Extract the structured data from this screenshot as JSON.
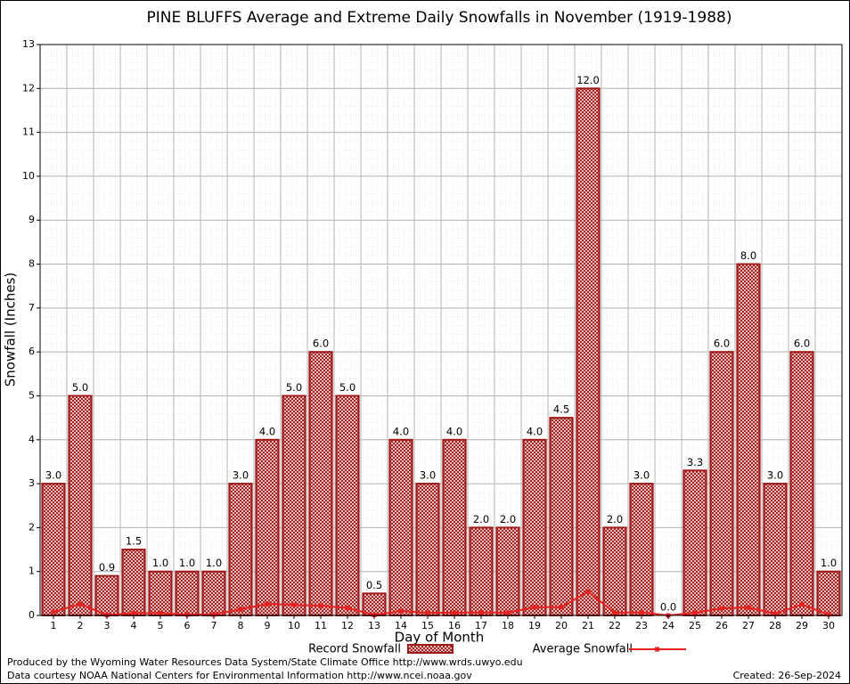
{
  "chart_data": {
    "type": "bar",
    "title": "PINE BLUFFS Average and Extreme Daily Snowfalls in November (1919-1988)",
    "x_label": "Day of Month",
    "y_label": "Snowfall (Inches)",
    "categories": [
      "1",
      "2",
      "3",
      "4",
      "5",
      "6",
      "7",
      "8",
      "9",
      "10",
      "11",
      "12",
      "13",
      "14",
      "15",
      "16",
      "17",
      "18",
      "19",
      "20",
      "21",
      "22",
      "23",
      "24",
      "25",
      "26",
      "27",
      "28",
      "29",
      "30"
    ],
    "series": [
      {
        "name": "Record Snowfall",
        "type": "bar",
        "color": "#a01818",
        "values": [
          3.0,
          5.0,
          0.9,
          1.5,
          1.0,
          1.0,
          1.0,
          3.0,
          4.0,
          5.0,
          6.0,
          5.0,
          0.5,
          4.0,
          3.0,
          4.0,
          2.0,
          2.0,
          4.0,
          4.5,
          12.0,
          2.0,
          3.0,
          0.0,
          3.3,
          6.0,
          8.0,
          3.0,
          6.0,
          1.0
        ],
        "value_labels": [
          "3.0",
          "5.0",
          "0.9",
          "1.5",
          "1.0",
          "1.0",
          "1.0",
          "3.0",
          "4.0",
          "5.0",
          "6.0",
          "5.0",
          "0.5",
          "4.0",
          "3.0",
          "4.0",
          "2.0",
          "2.0",
          "4.0",
          "4.5",
          "12.0",
          "2.0",
          "3.0",
          "0.0",
          "3.3",
          "6.0",
          "8.0",
          "3.0",
          "6.0",
          "1.0"
        ]
      },
      {
        "name": "Average Snowfall",
        "type": "line",
        "color": "#e82020",
        "values": [
          0.08,
          0.26,
          0.01,
          0.05,
          0.05,
          0.02,
          0.02,
          0.14,
          0.26,
          0.24,
          0.22,
          0.17,
          0.01,
          0.1,
          0.06,
          0.06,
          0.07,
          0.06,
          0.19,
          0.19,
          0.54,
          0.06,
          0.07,
          0,
          0.06,
          0.16,
          0.18,
          0.04,
          0.25,
          0.02
        ]
      }
    ],
    "ylim": [
      0,
      13
    ],
    "yticks": [
      0,
      1,
      2,
      3,
      4,
      5,
      6,
      7,
      8,
      9,
      10,
      11,
      12,
      13
    ],
    "grid": true,
    "footer": [
      "Produced by the Wyoming Water Resources Data System/State Climate Office http://www.wrds.uwyo.edu",
      "Data courtesy NOAA National Centers for Environmental Information http://www.ncei.noaa.gov"
    ],
    "created": "Created:  26-Sep-2024"
  }
}
